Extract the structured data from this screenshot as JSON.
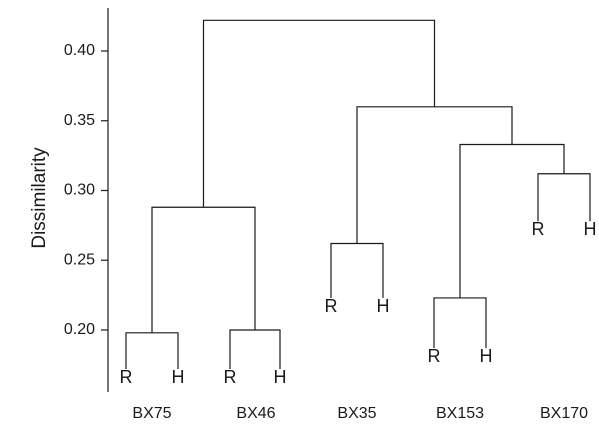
{
  "chart_data": {
    "type": "dendrogram",
    "title": "",
    "ylabel": "Dissimilarity",
    "xlabel": "",
    "ylim": [
      0.145,
      0.45
    ],
    "yticks": [
      "0.20",
      "0.25",
      "0.30",
      "0.35",
      "0.40"
    ],
    "grid": false,
    "groups": [
      "BX75",
      "BX46",
      "BX35",
      "BX153",
      "BX170"
    ],
    "leaves": [
      {
        "label": "R",
        "group": "BX75",
        "bottom": 0.172
      },
      {
        "label": "H",
        "group": "BX75",
        "bottom": 0.172
      },
      {
        "label": "R",
        "group": "BX46",
        "bottom": 0.172
      },
      {
        "label": "H",
        "group": "BX46",
        "bottom": 0.172
      },
      {
        "label": "R",
        "group": "BX35",
        "bottom": 0.223
      },
      {
        "label": "H",
        "group": "BX35",
        "bottom": 0.223
      },
      {
        "label": "R",
        "group": "BX153",
        "bottom": 0.187
      },
      {
        "label": "H",
        "group": "BX153",
        "bottom": 0.187
      },
      {
        "label": "R",
        "group": "BX170",
        "bottom": 0.278
      },
      {
        "label": "H",
        "group": "BX170",
        "bottom": 0.278
      }
    ],
    "merges": [
      {
        "left": "leaf:0",
        "right": "leaf:1",
        "height": 0.198
      },
      {
        "left": "leaf:2",
        "right": "leaf:3",
        "height": 0.2
      },
      {
        "left": "leaf:4",
        "right": "leaf:5",
        "height": 0.262
      },
      {
        "left": "leaf:6",
        "right": "leaf:7",
        "height": 0.223
      },
      {
        "left": "leaf:8",
        "right": "leaf:9",
        "height": 0.312
      },
      {
        "left": "merge:0",
        "right": "merge:1",
        "height": 0.288
      },
      {
        "left": "merge:3",
        "right": "merge:4",
        "height": 0.333
      },
      {
        "left": "merge:2",
        "right": "merge:6",
        "height": 0.36
      },
      {
        "left": "merge:5",
        "right": "merge:7",
        "height": 0.422
      }
    ]
  }
}
